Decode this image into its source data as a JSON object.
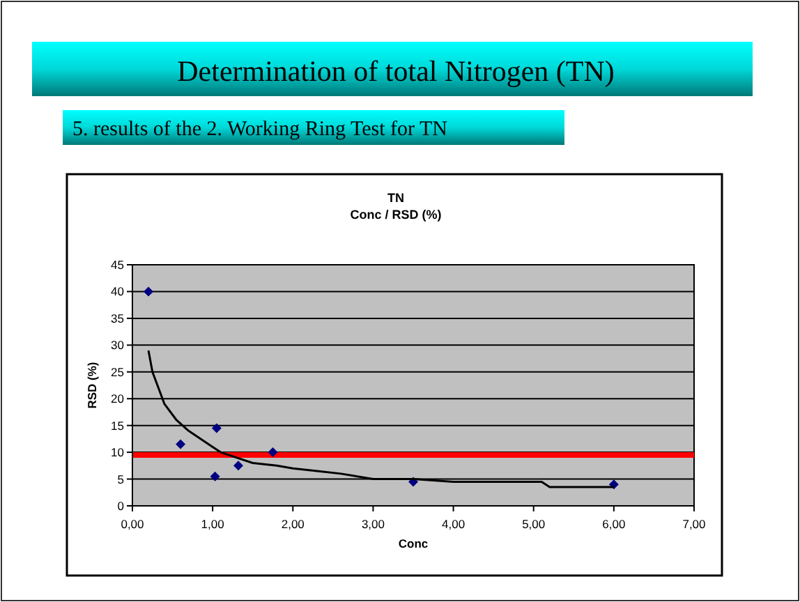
{
  "chart_data": {
    "type": "scatter",
    "title": "Determination of total Nitrogen (TN)",
    "subtitle": "5. results of the 2. Working Ring Test for TN",
    "annotations": [
      "TN",
      "Conc / RSD (%)"
    ],
    "xlabel": "Conc",
    "ylabel": "RSD (%)",
    "xlim": [
      0,
      7
    ],
    "xticks": [
      {
        "value": 0,
        "label": "0,00"
      },
      {
        "value": 1,
        "label": "1,00"
      },
      {
        "value": 2,
        "label": "2,00"
      },
      {
        "value": 3,
        "label": "3,00"
      },
      {
        "value": 4,
        "label": "4,00"
      },
      {
        "value": 5,
        "label": "5,00"
      },
      {
        "value": 6,
        "label": "6,00"
      },
      {
        "value": 7,
        "label": "7,00"
      }
    ],
    "ylim": [
      0,
      45
    ],
    "yticks": [
      0,
      5,
      10,
      15,
      20,
      25,
      30,
      35,
      40,
      45
    ],
    "grid": "y",
    "marker": "diamond",
    "series": [
      {
        "color": "#000080",
        "x": [
          0.2,
          0.6,
          1.05,
          1.03,
          1.32,
          1.75,
          3.5,
          6.0
        ],
        "values": [
          40,
          11.5,
          14.5,
          5.5,
          7.5,
          10,
          4.5,
          4
        ]
      },
      {
        "type": "line",
        "color": "#000000",
        "marker": "none",
        "line_style": "solid",
        "x": [
          0.2,
          0.25,
          0.4,
          0.55,
          0.7,
          0.9,
          1.0,
          1.1,
          1.3,
          1.5,
          1.8,
          2.0,
          2.3,
          2.6,
          3.0,
          3.5,
          4.0,
          5.1,
          5.2,
          6.0
        ],
        "values": [
          29,
          25,
          19,
          16,
          14,
          12,
          11,
          10,
          9,
          8,
          7.5,
          7,
          6.5,
          6,
          5,
          5,
          4.5,
          4.5,
          3.5,
          3.5
        ]
      }
    ],
    "ref_lines": [
      {
        "axis": "y",
        "value": 9.5,
        "color": "#ff0000"
      }
    ]
  }
}
